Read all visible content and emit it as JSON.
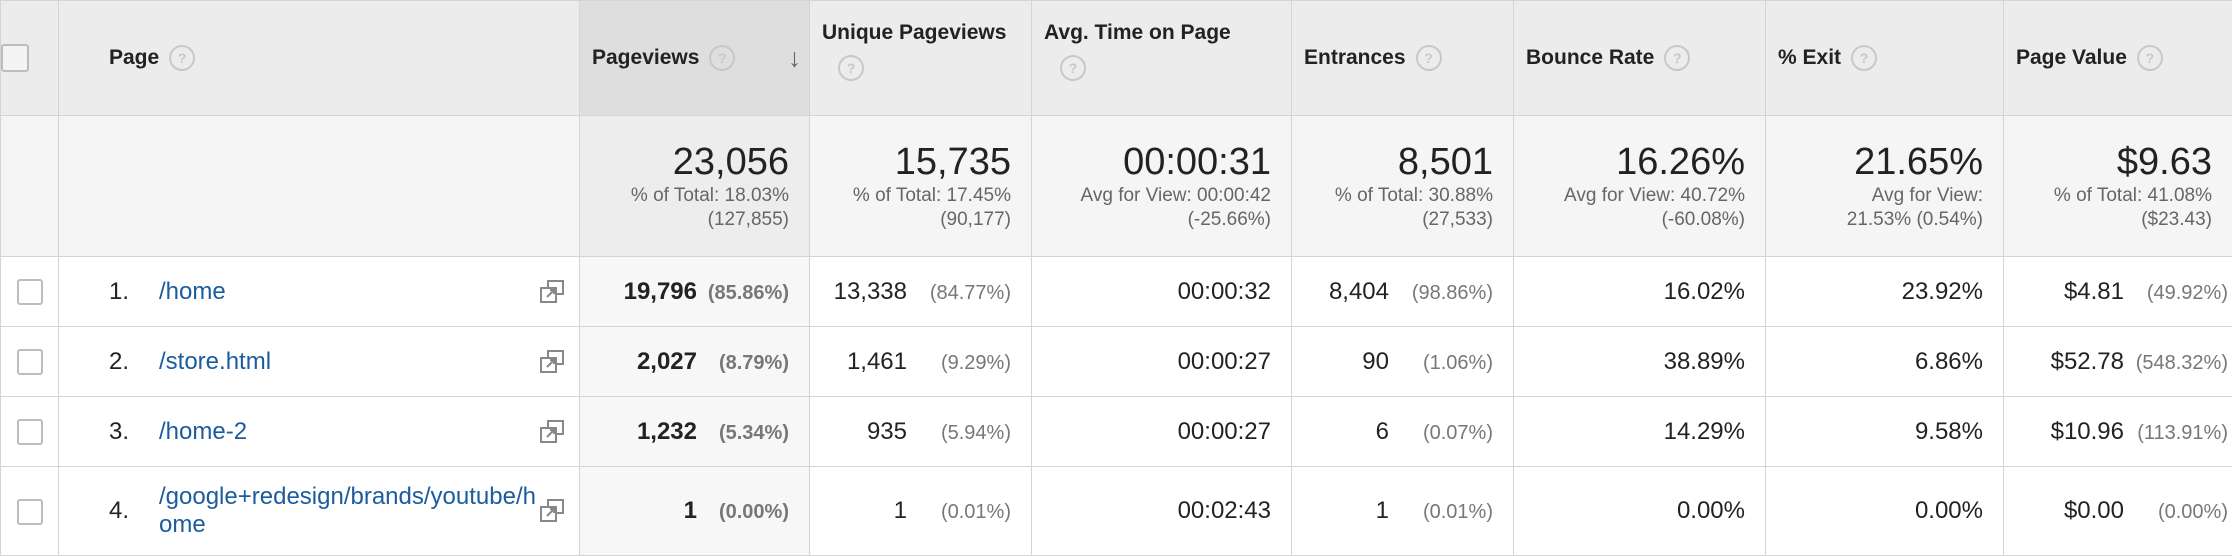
{
  "header": {
    "page": "Page",
    "pageviews": "Pageviews",
    "unique_pageviews": "Unique Pageviews",
    "avg_time": "Avg. Time on Page",
    "entrances": "Entrances",
    "bounce_rate": "Bounce Rate",
    "exit": "% Exit",
    "page_value": "Page Value",
    "help": "?",
    "sort_arrow": "↓"
  },
  "totals": {
    "pageviews": {
      "value": "23,056",
      "l1": "% of Total: 18.03%",
      "l2": "(127,855)"
    },
    "unique_pageviews": {
      "value": "15,735",
      "l1": "% of Total: 17.45%",
      "l2": "(90,177)"
    },
    "avg_time": {
      "value": "00:00:31",
      "l1": "Avg for View: 00:00:42",
      "l2": "(-25.66%)"
    },
    "entrances": {
      "value": "8,501",
      "l1": "% of Total: 30.88%",
      "l2": "(27,533)"
    },
    "bounce_rate": {
      "value": "16.26%",
      "l1": "Avg for View: 40.72%",
      "l2": "(-60.08%)"
    },
    "exit": {
      "value": "21.65%",
      "l1": "Avg for View:",
      "l2": "21.53% (0.54%)"
    },
    "page_value": {
      "value": "$9.63",
      "l1": "% of Total: 41.08%",
      "l2": "($23.43)"
    }
  },
  "rows": [
    {
      "index": "1.",
      "page": "/home",
      "pageviews": "19,796",
      "pageviews_pct": "(85.86%)",
      "unique": "13,338",
      "unique_pct": "(84.77%)",
      "avg_time": "00:00:32",
      "entrances": "8,404",
      "entrances_pct": "(98.86%)",
      "bounce": "16.02%",
      "exit": "23.92%",
      "value": "$4.81",
      "value_pct": "(49.92%)"
    },
    {
      "index": "2.",
      "page": "/store.html",
      "pageviews": "2,027",
      "pageviews_pct": "(8.79%)",
      "unique": "1,461",
      "unique_pct": "(9.29%)",
      "avg_time": "00:00:27",
      "entrances": "90",
      "entrances_pct": "(1.06%)",
      "bounce": "38.89%",
      "exit": "6.86%",
      "value": "$52.78",
      "value_pct": "(548.32%)"
    },
    {
      "index": "3.",
      "page": "/home-2",
      "pageviews": "1,232",
      "pageviews_pct": "(5.34%)",
      "unique": "935",
      "unique_pct": "(5.94%)",
      "avg_time": "00:00:27",
      "entrances": "6",
      "entrances_pct": "(0.07%)",
      "bounce": "14.29%",
      "exit": "9.58%",
      "value": "$10.96",
      "value_pct": "(113.91%)"
    },
    {
      "index": "4.",
      "page": "/google+redesign/brands/youtube/home",
      "pageviews": "1",
      "pageviews_pct": "(0.00%)",
      "unique": "1",
      "unique_pct": "(0.01%)",
      "avg_time": "00:02:43",
      "entrances": "1",
      "entrances_pct": "(0.01%)",
      "bounce": "0.00%",
      "exit": "0.00%",
      "value": "$0.00",
      "value_pct": "(0.00%)"
    }
  ],
  "colors": {
    "link": "#1a5c9e",
    "header_bg": "#ececec",
    "totals_bg": "#f5f5f5"
  },
  "icons": {
    "external_link": "external-link-icon",
    "help": "help-icon",
    "sort": "sort-desc-icon"
  }
}
